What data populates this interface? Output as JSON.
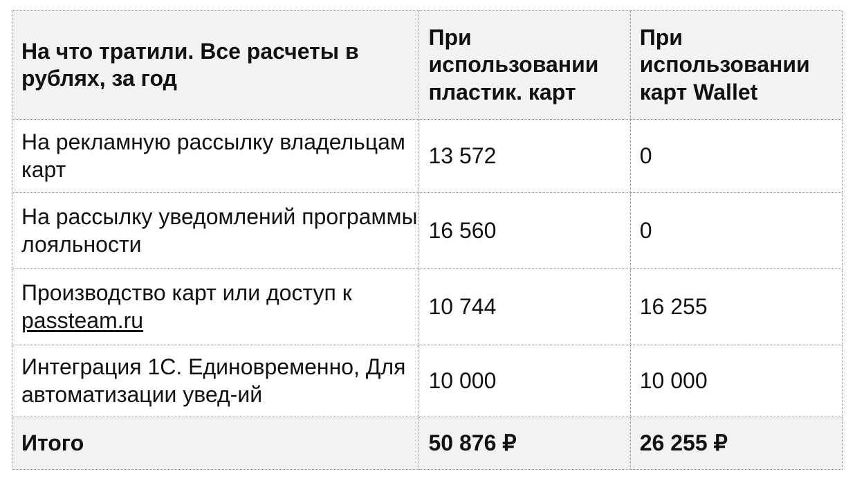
{
  "table": {
    "headers": [
      "На что тратили. Все расчеты в рублях, за год",
      "При использовании пластик. карт",
      "При использовании карт Wallet"
    ],
    "rows": [
      {
        "label": "На рекламную рассылку владельцам карт",
        "plastic": "13 572",
        "wallet": "0"
      },
      {
        "label": "На рассылку уведомлений программы лояльности",
        "plastic": "16 560",
        "wallet": "0"
      },
      {
        "label_prefix": "Производство карт или доступ к",
        "label_link": "passteam.ru",
        "plastic": "10 744",
        "wallet": "16 255"
      },
      {
        "label": "Интеграция 1С. Единовременно, Для автоматизации увед-ий",
        "plastic": "10 000",
        "wallet": "10 000"
      }
    ],
    "total": {
      "label": "Итого",
      "plastic": "50 876 ₽",
      "wallet": "26 255 ₽"
    }
  }
}
